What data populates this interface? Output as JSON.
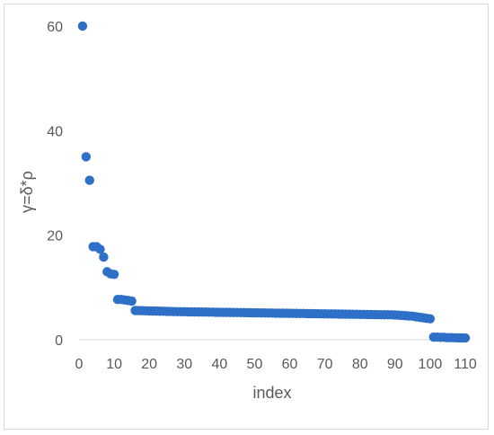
{
  "chart_data": {
    "type": "scatter",
    "title": "",
    "xlabel": "index",
    "ylabel": "γ=δ*ρ",
    "xlim": [
      0,
      110
    ],
    "ylim": [
      0,
      60
    ],
    "x_ticks": [
      "0",
      "10",
      "20",
      "30",
      "40",
      "50",
      "60",
      "70",
      "80",
      "90",
      "100",
      "110"
    ],
    "y_ticks": [
      "0",
      "20",
      "40",
      "60"
    ],
    "grid": false,
    "legend": "none",
    "marker_color": "#2E6FC7",
    "series": [
      {
        "x": [
          1,
          2,
          3,
          4,
          5,
          6,
          7,
          8,
          9,
          10,
          11,
          12,
          13,
          14,
          15,
          16,
          17,
          18,
          19,
          20,
          21,
          22,
          23,
          24,
          25,
          26,
          27,
          28,
          29,
          30,
          31,
          32,
          33,
          34,
          35,
          36,
          37,
          38,
          39,
          40,
          41,
          42,
          43,
          44,
          45,
          46,
          47,
          48,
          49,
          50,
          51,
          52,
          53,
          54,
          55,
          56,
          57,
          58,
          59,
          60,
          61,
          62,
          63,
          64,
          65,
          66,
          67,
          68,
          69,
          70,
          71,
          72,
          73,
          74,
          75,
          76,
          77,
          78,
          79,
          80,
          81,
          82,
          83,
          84,
          85,
          86,
          87,
          88,
          89,
          90,
          91,
          92,
          93,
          94,
          95,
          96,
          97,
          98,
          99,
          100,
          101,
          102,
          103,
          104,
          105,
          106,
          107,
          108,
          109,
          110
        ],
        "y": [
          60.0,
          35.0,
          30.5,
          17.8,
          17.8,
          17.3,
          15.8,
          13.0,
          12.6,
          12.5,
          7.7,
          7.7,
          7.6,
          7.5,
          7.4,
          5.6,
          5.58,
          5.56,
          5.54,
          5.52,
          5.5,
          5.48,
          5.46,
          5.44,
          5.42,
          5.4,
          5.38,
          5.37,
          5.36,
          5.35,
          5.34,
          5.33,
          5.32,
          5.31,
          5.3,
          5.29,
          5.28,
          5.27,
          5.26,
          5.25,
          5.24,
          5.23,
          5.22,
          5.21,
          5.2,
          5.19,
          5.18,
          5.17,
          5.16,
          5.15,
          5.14,
          5.13,
          5.12,
          5.11,
          5.1,
          5.09,
          5.08,
          5.07,
          5.06,
          5.05,
          5.04,
          5.03,
          5.02,
          5.01,
          5.0,
          4.99,
          4.98,
          4.97,
          4.96,
          4.95,
          4.94,
          4.93,
          4.92,
          4.91,
          4.9,
          4.89,
          4.88,
          4.87,
          4.86,
          4.85,
          4.84,
          4.83,
          4.82,
          4.81,
          4.8,
          4.79,
          4.78,
          4.77,
          4.76,
          4.74,
          4.7,
          4.65,
          4.6,
          4.55,
          4.5,
          4.4,
          4.3,
          4.2,
          4.1,
          4.0,
          0.5,
          0.5,
          0.45,
          0.45,
          0.4,
          0.4,
          0.38,
          0.36,
          0.35,
          0.33
        ]
      }
    ]
  }
}
